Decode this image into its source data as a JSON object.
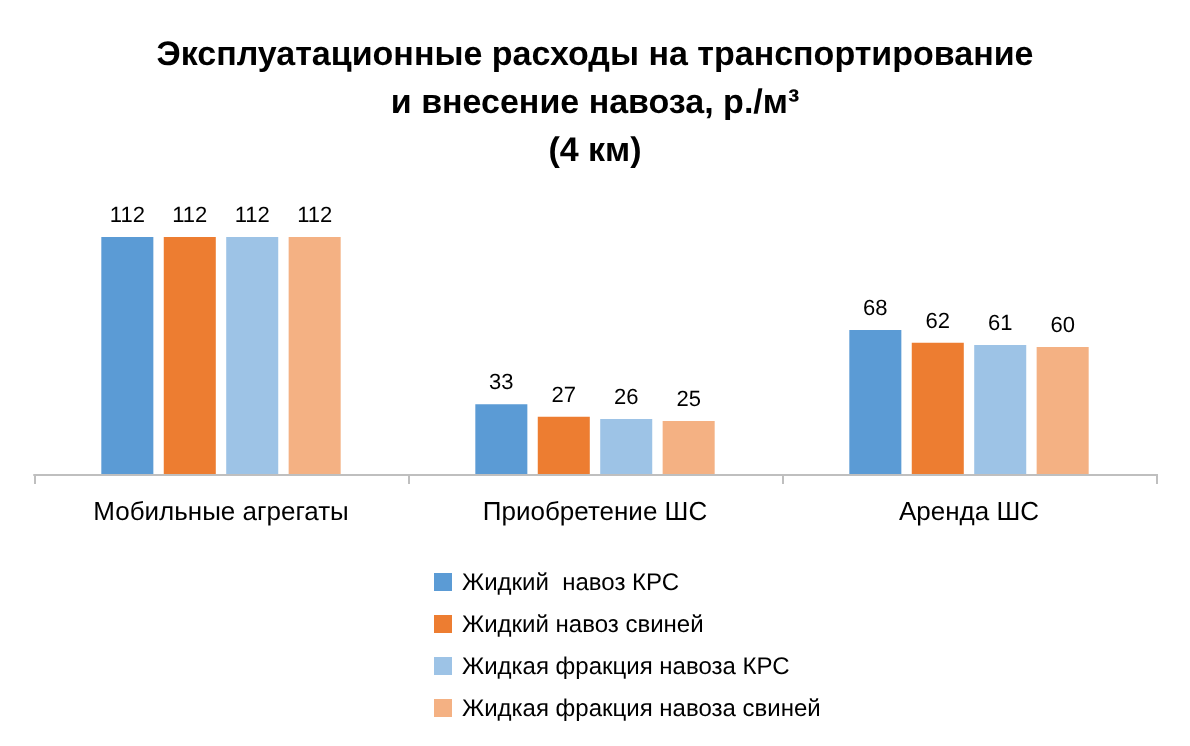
{
  "chart_data": {
    "type": "bar",
    "title": "Эксплуатационные расходы на транспортирование\nи внесение навоза, р./м³\n(4 км)",
    "categories": [
      "Мобильные агрегаты",
      "Приобретение ШС",
      "Аренда ШС"
    ],
    "series": [
      {
        "name": "Жидкий  навоз КРС",
        "color": "#5b9bd5",
        "values": [
          112,
          33,
          68
        ]
      },
      {
        "name": "Жидкий навоз свиней",
        "color": "#ed7d31",
        "values": [
          112,
          27,
          62
        ]
      },
      {
        "name": "Жидкая фракция навоза КРС",
        "color": "#9dc3e6",
        "values": [
          112,
          26,
          61
        ]
      },
      {
        "name": "Жидкая фракция навоза свиней",
        "color": "#f4b183",
        "values": [
          112,
          25,
          60
        ]
      }
    ],
    "data_labels": true,
    "legend": "bottom"
  }
}
